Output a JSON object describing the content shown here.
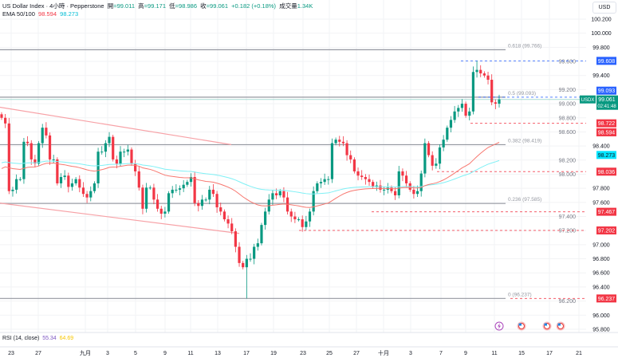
{
  "header": {
    "symbol": "US Dollar Index · 4小時 · Pepperstone",
    "open_label": "開",
    "open": "=99.011",
    "high_label": "高",
    "high": "=99.171",
    "low_label": "低",
    "low": "=98.986",
    "close_label": "收",
    "close": "=99.061",
    "change": "+0.182 (+0.18%)",
    "volume_label": "成交量",
    "volume": "1.34K",
    "ema_label": "EMA 50/100",
    "ema50": "98.594",
    "ema100": "98.273"
  },
  "currency_button": "USD",
  "rsi": {
    "label": "RSI (14, close)",
    "v1": "55.34",
    "v2": "64.69"
  },
  "colors": {
    "up": "#089981",
    "down": "#f23645",
    "ema50": "#f7776f",
    "ema100": "#7ff0f5",
    "blue": "#2962ff",
    "red": "#f23645",
    "cyan": "#00e5ff",
    "fib": "#9598a1",
    "channel": "#f7a1a6"
  },
  "chart_data": {
    "type": "candlestick",
    "title": "US Dollar Index · 4小時 · Pepperstone",
    "ylim": [
      95.8,
      100.2
    ],
    "y_ticks": [
      "100.200",
      "100.000",
      "99.800",
      "99.600",
      "99.400",
      "99.200",
      "99.000",
      "98.800",
      "98.600",
      "98.400",
      "98.200",
      "98.000",
      "97.800",
      "97.600",
      "97.400",
      "97.200",
      "97.000",
      "96.800",
      "96.600",
      "96.400",
      "96.200",
      "96.000",
      "95.800"
    ],
    "x_ticks": [
      "23",
      "27",
      "九月",
      "3",
      "5",
      "9",
      "11",
      "13",
      "17",
      "19",
      "23",
      "25",
      "27",
      "十月",
      "3",
      "7",
      "9",
      "11",
      "15",
      "17",
      "21"
    ],
    "closes": [
      98.8,
      98.72,
      97.76,
      97.78,
      97.93,
      97.93,
      98.46,
      98.44,
      98.21,
      98.15,
      98.44,
      98.66,
      98.55,
      98.21,
      98.21,
      97.87,
      97.96,
      97.98,
      97.82,
      97.87,
      97.93,
      97.81,
      97.72,
      97.67,
      97.76,
      97.87,
      98.32,
      98.32,
      98.44,
      98.53,
      98.21,
      98.15,
      98.32,
      98.32,
      98.35,
      98.15,
      98.04,
      97.81,
      97.51,
      97.81,
      97.81,
      97.64,
      97.51,
      97.44,
      97.47,
      97.73,
      97.78,
      97.78,
      97.8,
      97.85,
      97.89,
      97.96,
      97.59,
      97.55,
      97.64,
      97.64,
      97.78,
      97.72,
      97.53,
      97.47,
      97.36,
      97.3,
      97.19,
      96.97,
      96.74,
      96.68,
      96.8,
      96.8,
      96.97,
      97.02,
      97.28,
      97.47,
      97.64,
      97.73,
      97.7,
      97.76,
      97.67,
      97.47,
      97.4,
      97.36,
      97.36,
      97.25,
      97.33,
      97.47,
      97.76,
      97.87,
      97.89,
      97.93,
      97.93,
      98.44,
      98.49,
      98.46,
      98.44,
      98.27,
      98.21,
      98.04,
      97.98,
      97.96,
      97.93,
      97.89,
      97.83,
      97.84,
      97.78,
      97.78,
      97.81,
      97.76,
      97.7,
      98.04,
      97.98,
      97.87,
      97.78,
      97.72,
      97.76,
      98.01,
      98.44,
      98.27,
      98.12,
      98.15,
      98.38,
      98.49,
      98.66,
      98.77,
      98.89,
      98.94,
      99.0,
      98.83,
      98.89,
      99.45,
      99.48,
      99.43,
      99.4,
      99.34,
      99.02,
      99.0,
      99.061
    ],
    "period_low": 96.237,
    "period_high": 99.608,
    "fib_levels": [
      {
        "label": "0.618 (99.766)",
        "value": 99.766
      },
      {
        "label": "0.5 (99.093)",
        "value": 99.093
      },
      {
        "label": "0.382 (98.419)",
        "value": 98.419
      },
      {
        "label": "0.236 (97.585)",
        "value": 97.585
      },
      {
        "label": "0 (96.237)",
        "value": 96.237
      }
    ],
    "channel": {
      "upper": [
        98.95,
        98.42
      ],
      "lower": [
        97.59,
        97.16
      ]
    },
    "price_badges": [
      {
        "value": "99.608",
        "color": "#2962ff",
        "dashed": true
      },
      {
        "value": "99.093",
        "color": "#2962ff",
        "dashed": true
      },
      {
        "value": "98.722",
        "color": "#f23645",
        "dashed": true
      },
      {
        "value": "98.594",
        "color": "#f23645",
        "dashed": false
      },
      {
        "value": "98.273",
        "color": "#00e5ff",
        "dashed": false
      },
      {
        "value": "98.036",
        "color": "#f23645",
        "dashed": true
      },
      {
        "value": "97.467",
        "color": "#f23645",
        "dashed": true
      },
      {
        "value": "97.202",
        "color": "#f23645",
        "dashed": true
      },
      {
        "value": "96.237",
        "color": "#f23645",
        "dashed": true
      }
    ],
    "last_price": {
      "symbol": "USDX",
      "value": "99.061",
      "countdown": "02:41:48"
    }
  }
}
